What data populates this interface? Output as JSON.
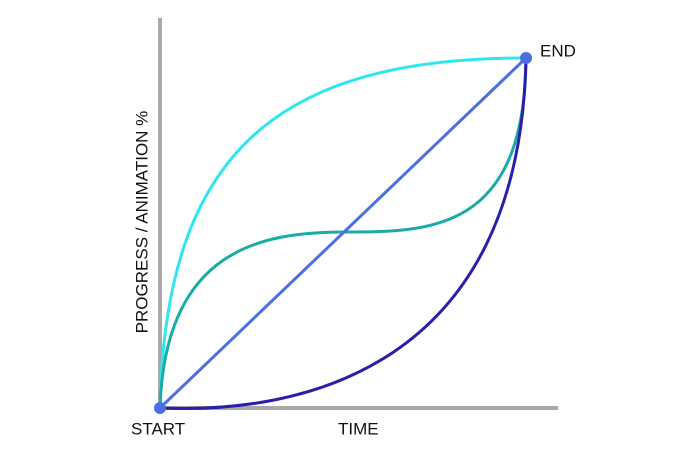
{
  "labels": {
    "end": "END",
    "start": "START",
    "x_axis": "TIME",
    "y_axis": "PROGRESS / ANIMATION %"
  }
}
